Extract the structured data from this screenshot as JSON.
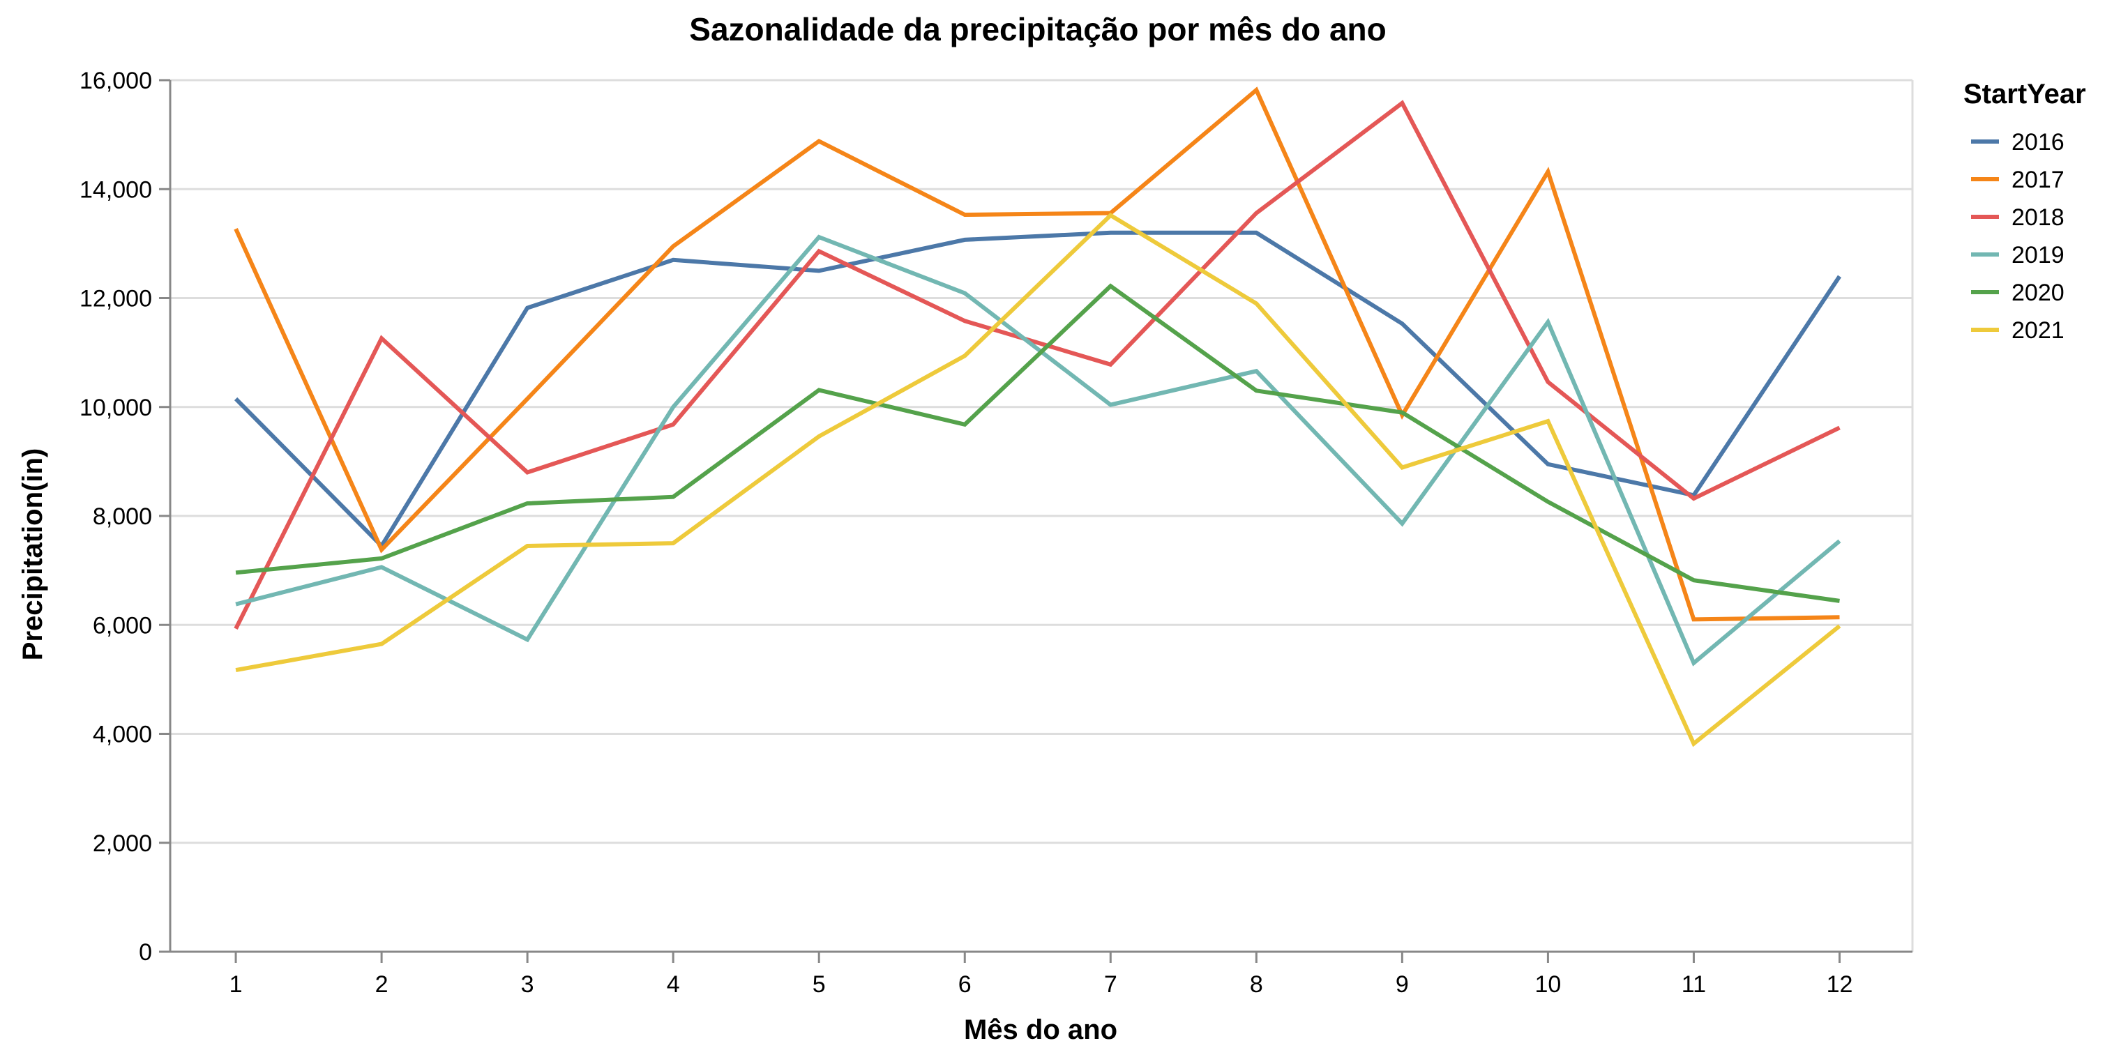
{
  "chart_data": {
    "type": "line",
    "title": "Sazonalidade da precipitação por mês do ano",
    "xlabel": "Mês do ano",
    "ylabel": "Precipitation(in)",
    "x": [
      1,
      2,
      3,
      4,
      5,
      6,
      7,
      8,
      9,
      10,
      11,
      12
    ],
    "xlim": [
      0.55,
      12.5
    ],
    "ylim": [
      0,
      16000
    ],
    "y_ticks": [
      0,
      2000,
      4000,
      6000,
      8000,
      10000,
      12000,
      14000,
      16000
    ],
    "y_tick_labels": [
      "0",
      "2,000",
      "4,000",
      "6,000",
      "8,000",
      "10,000",
      "12,000",
      "14,000",
      "16,000"
    ],
    "grid": true,
    "legend_title": "StartYear",
    "legend_position": "top-right",
    "series": [
      {
        "name": "2016",
        "color": "#4c78a8",
        "values": [
          10150,
          7450,
          11820,
          12700,
          12500,
          13070,
          13200,
          13200,
          11530,
          8950,
          8380,
          12400
        ]
      },
      {
        "name": "2017",
        "color": "#f58518",
        "values": [
          13270,
          7380,
          10150,
          12950,
          14880,
          13530,
          13560,
          15820,
          9850,
          14320,
          6100,
          6140
        ]
      },
      {
        "name": "2018",
        "color": "#e45756",
        "values": [
          5930,
          11260,
          8800,
          9680,
          12860,
          11580,
          10780,
          13560,
          15580,
          10460,
          8320,
          9620
        ]
      },
      {
        "name": "2019",
        "color": "#72b7b2",
        "values": [
          6380,
          7060,
          5730,
          10000,
          13120,
          12090,
          10040,
          10660,
          7860,
          11560,
          5300,
          7540
        ]
      },
      {
        "name": "2020",
        "color": "#54a24b",
        "values": [
          6960,
          7220,
          8230,
          8350,
          10310,
          9680,
          12220,
          10300,
          9900,
          8260,
          6820,
          6440
        ]
      },
      {
        "name": "2021",
        "color": "#eeca3b",
        "values": [
          5170,
          5650,
          7450,
          7500,
          9460,
          10940,
          13520,
          11900,
          8890,
          9740,
          3820,
          5980
        ]
      }
    ]
  }
}
